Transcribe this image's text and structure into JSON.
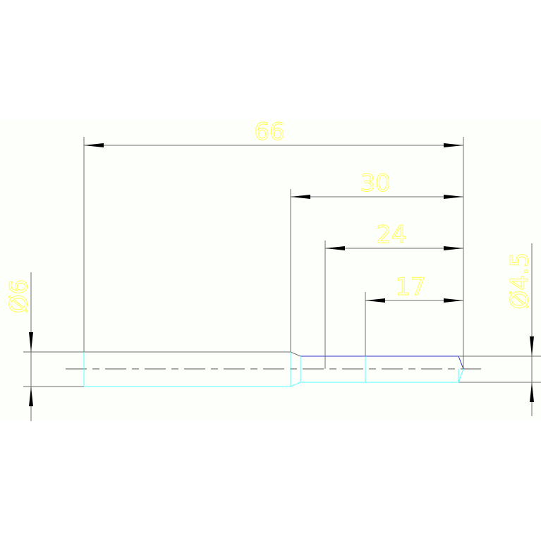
{
  "drawing": {
    "dimensions": {
      "overall_length": "66",
      "length_30": "30",
      "length_24": "24",
      "length_17": "17",
      "diameter_left": "Ø6",
      "diameter_right": "Ø4.5"
    },
    "colors": {
      "dimension_text": "#ffff55",
      "geometry": "#6e6e6e",
      "hidden_edges": "#55ffff",
      "highlight_edge": "#3333cc",
      "background": "#fdfffb"
    }
  }
}
